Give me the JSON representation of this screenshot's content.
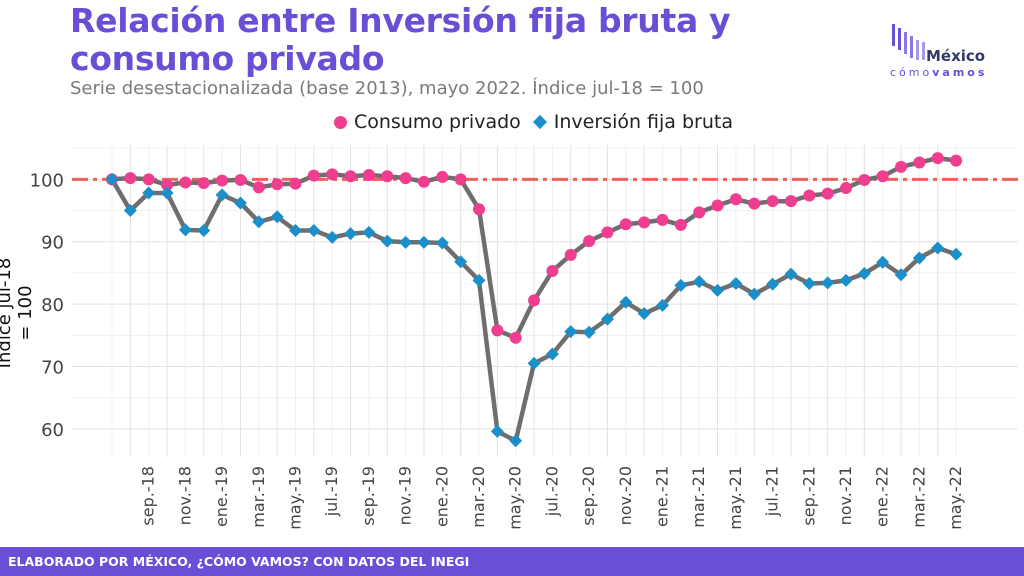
{
  "header": {
    "title": "Relación entre Inversión fija bruta y consumo privado",
    "subtitle": "Serie desestacionalizada (base 2013), mayo 2022. Índice jul-18 = 100"
  },
  "logo": {
    "name": "México",
    "tagline_prefix": "cómo",
    "tagline_suffix": "vamos"
  },
  "footer": {
    "text": "ELABORADO POR MÉXICO, ¿CÓMO VAMOS? CON DATOS DEL INEGI"
  },
  "colors": {
    "consumo": "#ef3e8f",
    "inversion": "#1b8fc9",
    "line": "#6e6e6e",
    "reference": "#f0605a",
    "brand": "#6a4fd6"
  },
  "chart_data": {
    "type": "line",
    "ylabel": "Índice jul-18 = 100",
    "ylim": [
      55.5,
      105.5
    ],
    "yticks": [
      60,
      70,
      80,
      90,
      100
    ],
    "grid": true,
    "legend_position": "top",
    "reference_line": {
      "y": 100,
      "style": "dash-dot"
    },
    "x": [
      "jul.-18",
      "ago.-18",
      "sep.-18",
      "oct.-18",
      "nov.-18",
      "dic.-18",
      "ene.-19",
      "feb.-19",
      "mar.-19",
      "abr.-19",
      "may.-19",
      "jun.-19",
      "jul.-19",
      "ago.-19",
      "sep.-19",
      "oct.-19",
      "nov.-19",
      "dic.-19",
      "ene.-20",
      "feb.-20",
      "mar.-20",
      "abr.-20",
      "may.-20",
      "jun.-20",
      "jul.-20",
      "ago.-20",
      "sep.-20",
      "oct.-20",
      "nov.-20",
      "dic.-20",
      "ene.-21",
      "feb.-21",
      "mar.-21",
      "abr.-21",
      "may.-21",
      "jun.-21",
      "jul.-21",
      "ago.-21",
      "sep.-21",
      "oct.-21",
      "nov.-21",
      "dic.-21",
      "ene.-22",
      "feb.-22",
      "mar.-22",
      "abr.-22",
      "may.-22"
    ],
    "xtick_labels": [
      "sep.-18",
      "nov.-18",
      "ene.-19",
      "mar.-19",
      "may.-19",
      "jul.-19",
      "sep.-19",
      "nov.-19",
      "ene.-20",
      "mar.-20",
      "may.-20",
      "jul.-20",
      "sep.-20",
      "nov.-20",
      "ene.-21",
      "mar.-21",
      "may.-21",
      "jul.-21",
      "sep.-21",
      "nov.-21",
      "ene.-22",
      "mar.-22",
      "may.-22"
    ],
    "series": [
      {
        "name": "Consumo privado",
        "marker": "circle",
        "values": [
          100,
          100.2,
          100,
          99.1,
          99.5,
          99.4,
          99.8,
          99.9,
          98.7,
          99.2,
          99.3,
          100.6,
          100.8,
          100.5,
          100.7,
          100.5,
          100.2,
          99.6,
          100.4,
          100,
          95.2,
          75.8,
          74.6,
          80.6,
          85.3,
          87.9,
          90.1,
          91.5,
          92.8,
          93.1,
          93.5,
          92.7,
          94.7,
          95.8,
          96.8,
          96.1,
          96.5,
          96.5,
          97.4,
          97.7,
          98.6,
          99.9,
          100.5,
          102,
          102.7,
          103.4,
          103
        ]
      },
      {
        "name": "Inversión fija bruta",
        "marker": "diamond",
        "values": [
          100,
          95,
          97.8,
          97.8,
          91.9,
          91.8,
          97.5,
          96.2,
          93.2,
          94,
          91.8,
          91.8,
          90.7,
          91.3,
          91.5,
          90.1,
          89.9,
          89.9,
          89.8,
          86.8,
          83.8,
          59.6,
          58.1,
          70.5,
          72,
          75.6,
          75.5,
          77.6,
          80.3,
          78.5,
          79.8,
          83,
          83.6,
          82.2,
          83.3,
          81.6,
          83.2,
          84.8,
          83.3,
          83.4,
          83.8,
          84.9,
          86.7,
          84.7,
          87.4,
          89,
          88
        ]
      }
    ]
  }
}
